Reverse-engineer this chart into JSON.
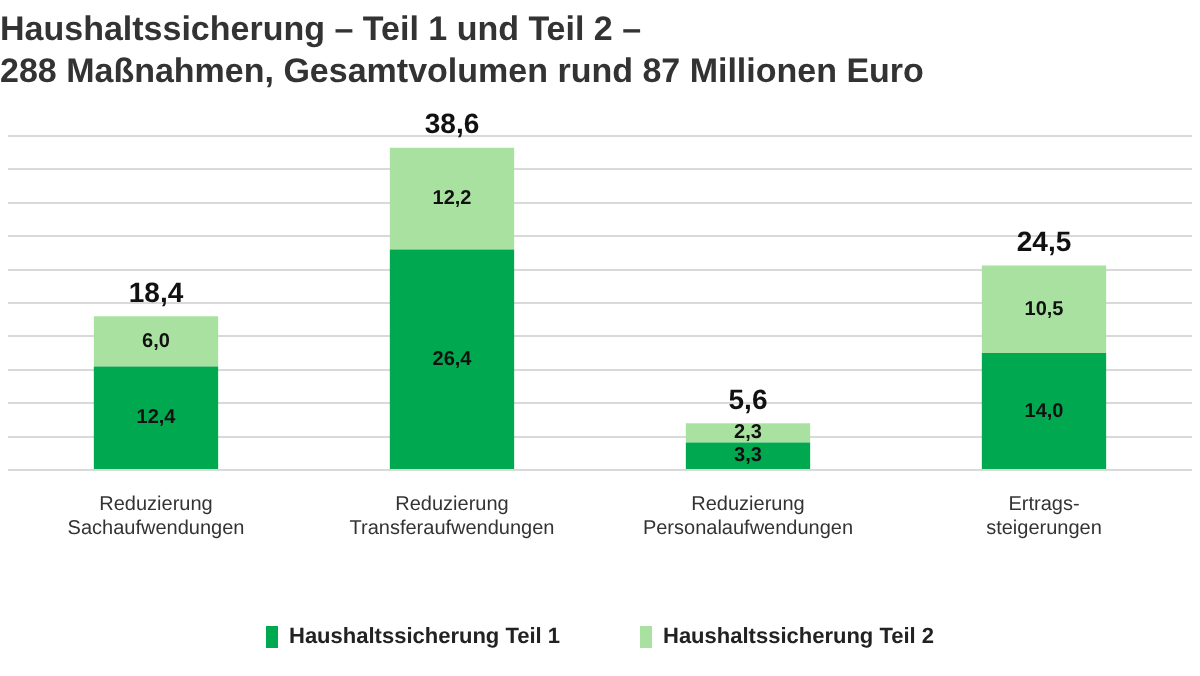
{
  "chart_data": {
    "type": "bar",
    "title": "Haushaltssicherung – Teil 1 und Teil 2 –\n288 Maßnahmen, Gesamtvolumen rund 87 Millionen Euro",
    "categories": [
      "Reduzierung\nSachaufwendungen",
      "Reduzierung\nTransferaufwendungen",
      "Reduzierung\nPersonalaufwendungen",
      "Ertrags-\nsteigerungen"
    ],
    "stacked": true,
    "series": [
      {
        "name": "Haushaltssicherung Teil 1",
        "color": "#00a94f",
        "values": [
          12.4,
          26.4,
          3.3,
          14.0
        ],
        "value_labels": [
          "12,4",
          "26,4",
          "3,3",
          "14,0"
        ]
      },
      {
        "name": "Haushaltssicherung Teil 2",
        "color": "#a9e2a0",
        "values": [
          6.0,
          12.2,
          2.3,
          10.5
        ],
        "value_labels": [
          "6,0",
          "12,2",
          "2,3",
          "10,5"
        ]
      }
    ],
    "totals": [
      "18,4",
      "38,6",
      "5,6",
      "24,5"
    ],
    "yticks": [
      {
        "value": 0,
        "label": null
      },
      {
        "value": 4,
        "label": null
      },
      {
        "value": 8,
        "label": null
      },
      {
        "value": 12,
        "label": null
      },
      {
        "value": 16,
        "label": null
      },
      {
        "value": 20,
        "label": null
      },
      {
        "value": 24,
        "label": null
      },
      {
        "value": 28,
        "label": null
      },
      {
        "value": 32,
        "label": null
      },
      {
        "value": 36,
        "label": null
      },
      {
        "value": 40,
        "label": null
      }
    ],
    "grid": "y",
    "tick_labels": "x",
    "legend": "bottom"
  }
}
